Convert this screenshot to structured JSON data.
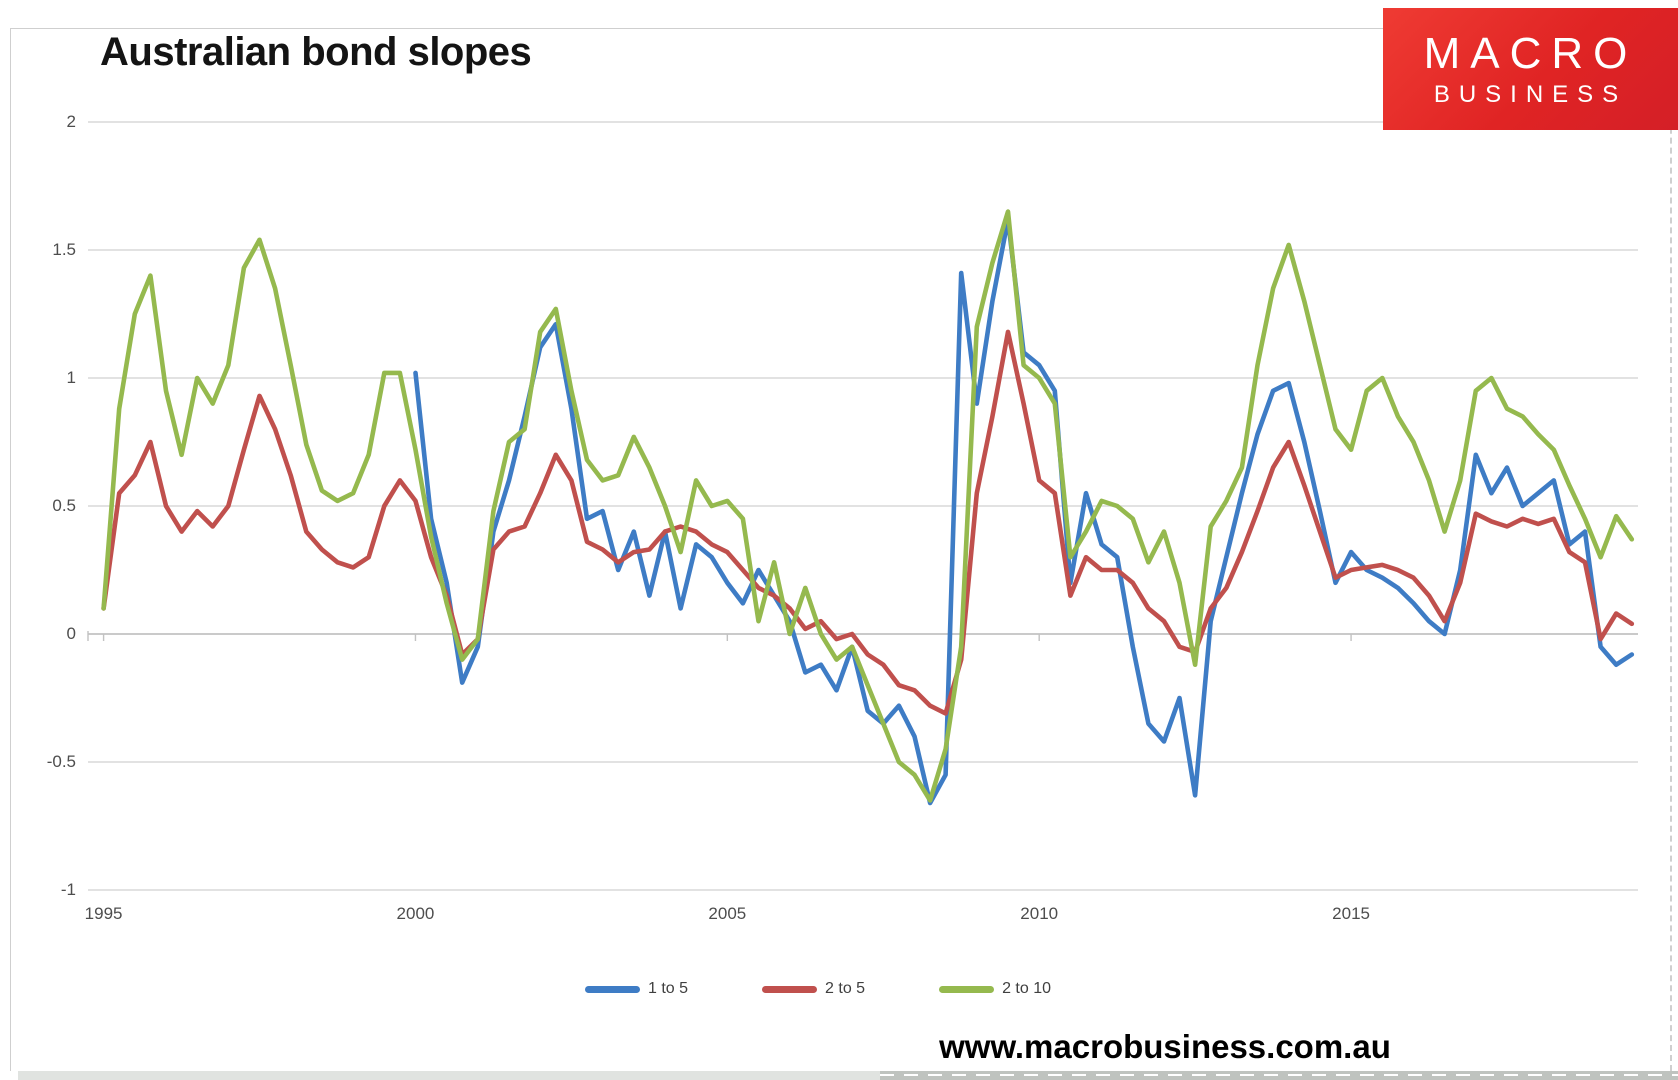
{
  "page": {
    "title": "Australian bond slopes",
    "footer_url": "www.macrobusiness.com.au"
  },
  "logo": {
    "line1": "MACRO",
    "line2": "BUSINESS",
    "bg_color": "#e02424",
    "text_color": "#ffffff"
  },
  "legend": [
    {
      "label": "1 to 5",
      "color": "#3e7cc5"
    },
    {
      "label": "2 to 5",
      "color": "#c0504d"
    },
    {
      "label": "2 to 10",
      "color": "#95b94e"
    }
  ],
  "axis": {
    "y_ticks": [
      "2",
      "1.5",
      "1",
      "0.5",
      "0",
      "-0.5",
      "-1"
    ],
    "y_tick_values": [
      2,
      1.5,
      1,
      0.5,
      0,
      -0.5,
      -1
    ],
    "x_ticks": [
      "1995",
      "2000",
      "2005",
      "2010",
      "2015"
    ],
    "x_tick_values": [
      1995,
      2000,
      2005,
      2010,
      2015
    ],
    "grid_color": "#d9d9d9",
    "zero_color": "#c2c2c2",
    "label_color": "#4d4d4d"
  },
  "chart_data": {
    "type": "line",
    "title": "Australian bond slopes",
    "xlabel": "",
    "ylabel": "",
    "ylim": [
      -1,
      2
    ],
    "xlim": [
      1995,
      2019.5
    ],
    "grid": true,
    "legend_position": "bottom",
    "x_start": 1995.0,
    "x_step": 0.25,
    "x_unit": "decimal years, quarterly samples",
    "series": [
      {
        "name": "1 to 5",
        "color": "#3e7cc5",
        "values": [
          null,
          null,
          null,
          null,
          null,
          null,
          null,
          null,
          null,
          null,
          null,
          null,
          null,
          null,
          null,
          null,
          null,
          null,
          null,
          null,
          1.02,
          0.45,
          0.2,
          -0.19,
          -0.05,
          0.4,
          0.6,
          0.85,
          1.12,
          1.21,
          0.88,
          0.45,
          0.48,
          0.25,
          0.4,
          0.15,
          0.4,
          0.1,
          0.35,
          0.3,
          0.2,
          0.12,
          0.25,
          0.15,
          0.05,
          -0.15,
          -0.12,
          -0.22,
          -0.05,
          -0.3,
          -0.35,
          -0.28,
          -0.4,
          -0.66,
          -0.55,
          1.41,
          0.9,
          1.3,
          1.62,
          1.1,
          1.05,
          0.95,
          0.2,
          0.55,
          0.35,
          0.3,
          -0.05,
          -0.35,
          -0.42,
          -0.25,
          -0.63,
          0.05,
          0.3,
          0.55,
          0.78,
          0.95,
          0.98,
          0.75,
          0.48,
          0.2,
          0.32,
          0.25,
          0.22,
          0.18,
          0.12,
          0.05,
          0.0,
          0.25,
          0.7,
          0.55,
          0.65,
          0.5,
          0.55,
          0.6,
          0.35,
          0.4,
          -0.05,
          -0.12,
          -0.08
        ]
      },
      {
        "name": "2 to 5",
        "color": "#c0504d",
        "values": [
          0.1,
          0.55,
          0.62,
          0.75,
          0.5,
          0.4,
          0.48,
          0.42,
          0.5,
          0.72,
          0.93,
          0.8,
          0.62,
          0.4,
          0.33,
          0.28,
          0.26,
          0.3,
          0.5,
          0.6,
          0.52,
          0.3,
          0.15,
          -0.08,
          -0.02,
          0.33,
          0.4,
          0.42,
          0.55,
          0.7,
          0.6,
          0.36,
          0.33,
          0.28,
          0.32,
          0.33,
          0.4,
          0.42,
          0.4,
          0.35,
          0.32,
          0.25,
          0.18,
          0.15,
          0.1,
          0.02,
          0.05,
          -0.02,
          0.0,
          -0.08,
          -0.12,
          -0.2,
          -0.22,
          -0.28,
          -0.31,
          -0.1,
          0.55,
          0.85,
          1.18,
          0.9,
          0.6,
          0.55,
          0.15,
          0.3,
          0.25,
          0.25,
          0.2,
          0.1,
          0.05,
          -0.05,
          -0.07,
          0.1,
          0.18,
          0.32,
          0.48,
          0.65,
          0.75,
          0.58,
          0.4,
          0.22,
          0.25,
          0.26,
          0.27,
          0.25,
          0.22,
          0.15,
          0.05,
          0.2,
          0.47,
          0.44,
          0.42,
          0.45,
          0.43,
          0.45,
          0.32,
          0.28,
          -0.02,
          0.08,
          0.04
        ]
      },
      {
        "name": "2 to 10",
        "color": "#95b94e",
        "values": [
          0.1,
          0.88,
          1.25,
          1.4,
          0.95,
          0.7,
          1.0,
          0.9,
          1.05,
          1.43,
          1.54,
          1.35,
          1.05,
          0.74,
          0.56,
          0.52,
          0.55,
          0.7,
          1.02,
          1.02,
          0.72,
          0.38,
          0.12,
          -0.1,
          -0.02,
          0.48,
          0.75,
          0.8,
          1.18,
          1.27,
          0.95,
          0.68,
          0.6,
          0.62,
          0.77,
          0.65,
          0.5,
          0.32,
          0.6,
          0.5,
          0.52,
          0.45,
          0.05,
          0.28,
          0.0,
          0.18,
          0.0,
          -0.1,
          -0.05,
          -0.2,
          -0.35,
          -0.5,
          -0.55,
          -0.65,
          -0.45,
          -0.05,
          1.2,
          1.45,
          1.65,
          1.05,
          1.0,
          0.9,
          0.3,
          0.4,
          0.52,
          0.5,
          0.45,
          0.28,
          0.4,
          0.2,
          -0.12,
          0.42,
          0.52,
          0.65,
          1.05,
          1.35,
          1.52,
          1.3,
          1.05,
          0.8,
          0.72,
          0.95,
          1.0,
          0.85,
          0.75,
          0.6,
          0.4,
          0.6,
          0.95,
          1.0,
          0.88,
          0.85,
          0.78,
          0.72,
          0.58,
          0.45,
          0.3,
          0.46,
          0.37
        ]
      }
    ]
  }
}
